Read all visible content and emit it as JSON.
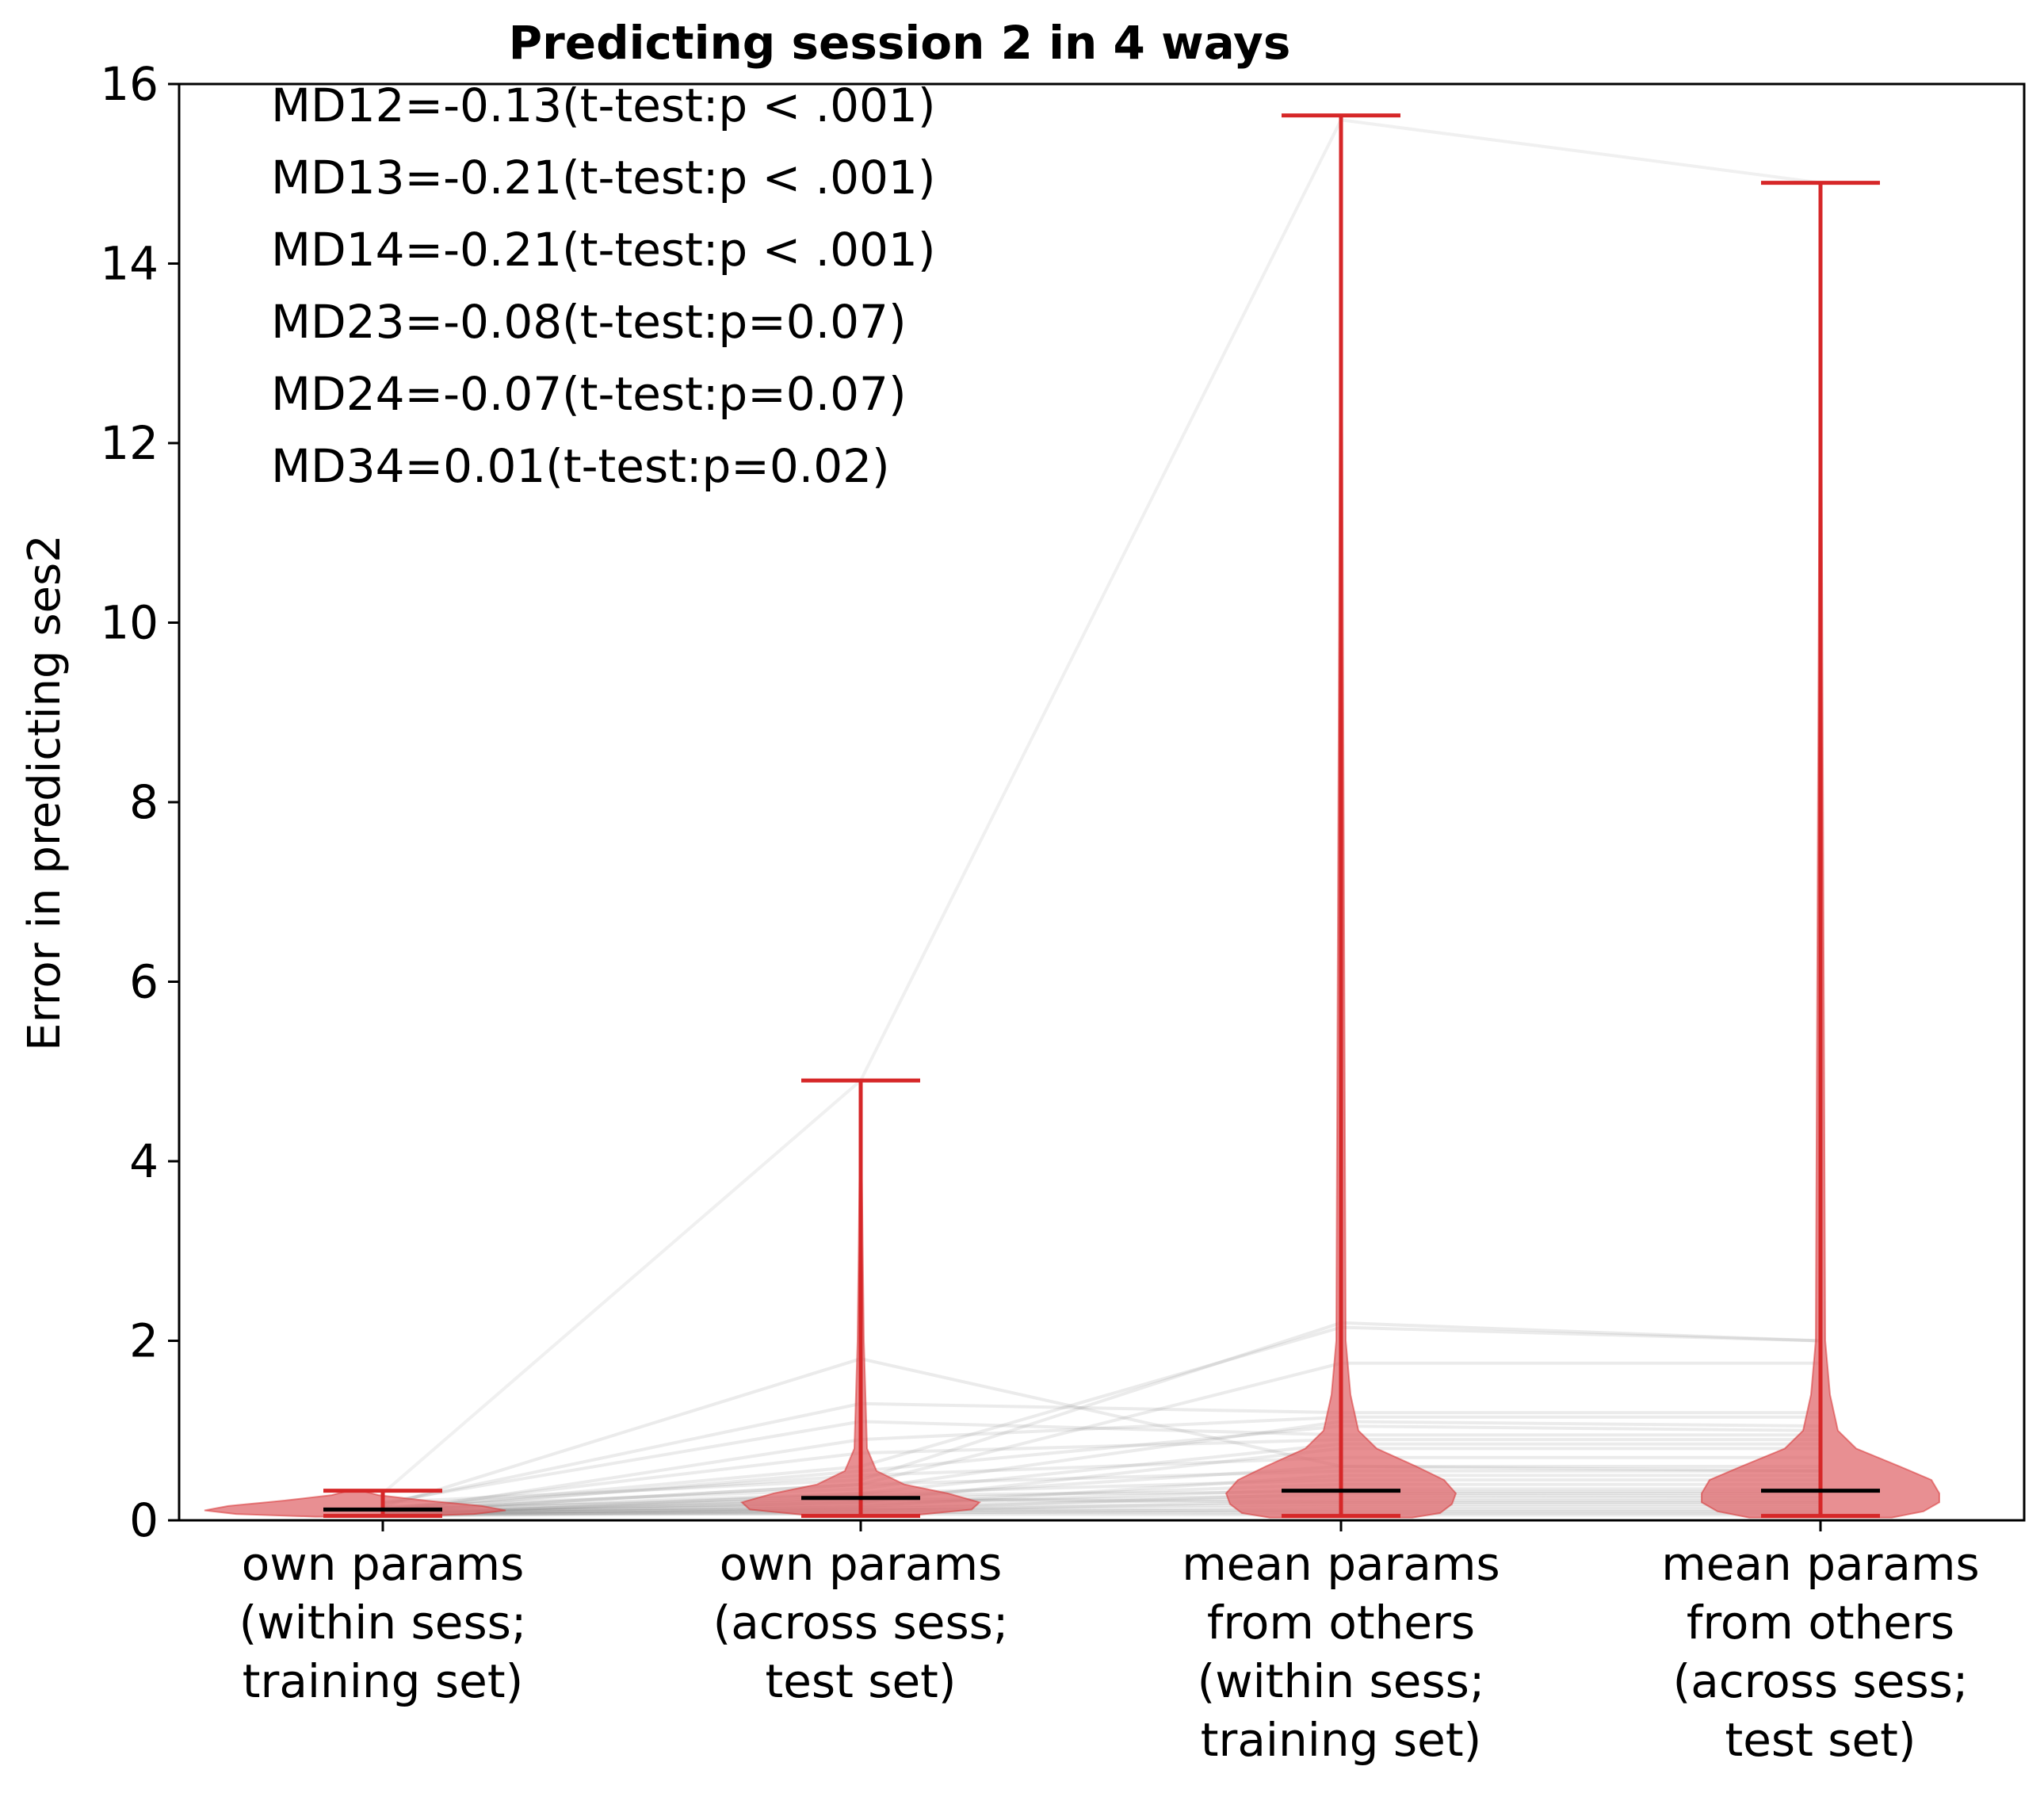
{
  "chart_data": {
    "type": "violin",
    "title": "Predicting session 2 in 4 ways",
    "ylabel": "Error in predicting ses2",
    "xlabel": "",
    "ylim": [
      0,
      16
    ],
    "yticks": [
      "0",
      "2",
      "4",
      "6",
      "8",
      "10",
      "12",
      "14",
      "16"
    ],
    "grid": false,
    "categories": [
      [
        "own params",
        "(within sess;",
        "training set)"
      ],
      [
        "own params",
        "(across sess;",
        "test set)"
      ],
      [
        "mean params",
        "from others",
        "(within sess;",
        "training set)"
      ],
      [
        "mean params",
        "from others",
        "(across sess;",
        "test set)"
      ]
    ],
    "summary": [
      {
        "min": 0.05,
        "median": 0.12,
        "max": 0.33
      },
      {
        "min": 0.05,
        "median": 0.25,
        "max": 4.9
      },
      {
        "min": 0.05,
        "median": 0.33,
        "max": 15.65
      },
      {
        "min": 0.05,
        "median": 0.33,
        "max": 14.9
      }
    ],
    "paired_lines": [
      [
        0.3,
        4.9,
        15.6,
        14.9
      ],
      [
        0.15,
        1.8,
        0.6,
        0.55
      ],
      [
        0.2,
        0.45,
        2.2,
        2.0
      ],
      [
        0.12,
        0.6,
        2.15,
        2.0
      ],
      [
        0.1,
        0.4,
        1.75,
        1.75
      ],
      [
        0.18,
        1.3,
        1.2,
        1.2
      ],
      [
        0.08,
        0.9,
        1.15,
        1.15
      ],
      [
        0.15,
        0.35,
        1.1,
        1.05
      ],
      [
        0.1,
        0.55,
        1.05,
        1.0
      ],
      [
        0.2,
        1.1,
        0.95,
        0.95
      ],
      [
        0.12,
        0.75,
        0.9,
        0.9
      ],
      [
        0.05,
        0.3,
        0.85,
        0.85
      ],
      [
        0.1,
        0.2,
        0.8,
        0.8
      ],
      [
        0.14,
        0.5,
        0.7,
        0.7
      ],
      [
        0.08,
        0.25,
        0.6,
        0.6
      ],
      [
        0.1,
        0.4,
        0.55,
        0.55
      ],
      [
        0.06,
        0.15,
        0.5,
        0.5
      ],
      [
        0.12,
        0.3,
        0.45,
        0.45
      ],
      [
        0.09,
        0.22,
        0.4,
        0.4
      ],
      [
        0.07,
        0.18,
        0.35,
        0.35
      ],
      [
        0.11,
        0.28,
        0.32,
        0.32
      ],
      [
        0.05,
        0.12,
        0.3,
        0.3
      ],
      [
        0.08,
        0.2,
        0.28,
        0.27
      ],
      [
        0.1,
        0.16,
        0.25,
        0.25
      ],
      [
        0.06,
        0.1,
        0.22,
        0.22
      ],
      [
        0.13,
        0.24,
        0.2,
        0.2
      ],
      [
        0.07,
        0.14,
        0.18,
        0.18
      ],
      [
        0.09,
        0.11,
        0.15,
        0.15
      ],
      [
        0.05,
        0.08,
        0.12,
        0.12
      ],
      [
        0.1,
        0.12,
        0.1,
        0.1
      ],
      [
        0.06,
        0.09,
        0.08,
        0.08
      ],
      [
        0.08,
        0.07,
        0.06,
        0.06
      ]
    ],
    "annotations": [
      "MD12=-0.13(t-test:p < .001)",
      "MD13=-0.21(t-test:p < .001)",
      "MD14=-0.21(t-test:p < .001)",
      "MD23=-0.08(t-test:p=0.07)",
      "MD24=-0.07(t-test:p=0.07)",
      "MD34=0.01(t-test:p=0.02)"
    ],
    "colors": {
      "violin_fill": "#e06a6e",
      "violin_line": "#d62728",
      "median": "#000000",
      "paired_line": "#808080"
    }
  }
}
